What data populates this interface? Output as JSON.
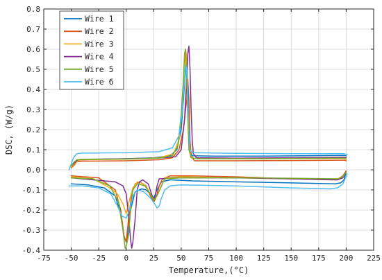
{
  "chart_data": {
    "type": "line",
    "xlabel": "Temperature,(°C)",
    "ylabel": "DSC, (W/g)",
    "xlim": [
      -75,
      225
    ],
    "ylim": [
      -0.4,
      0.8
    ],
    "xticks": [
      -75,
      -50,
      -25,
      0,
      25,
      50,
      75,
      100,
      125,
      150,
      175,
      200,
      225
    ],
    "yticks": [
      -0.4,
      -0.3,
      -0.2,
      -0.1,
      0.0,
      0.1,
      0.2,
      0.3,
      0.4,
      0.5,
      0.6,
      0.7,
      0.8
    ],
    "xtick_labels": [
      "-75",
      "-50",
      "-25",
      "0",
      "25",
      "50",
      "75",
      "100",
      "125",
      "150",
      "175",
      "200",
      "225"
    ],
    "ytick_labels": [
      "-0.4",
      "-0.3",
      "-0.2",
      "-0.1",
      "0.0",
      "0.1",
      "0.2",
      "0.3",
      "0.4",
      "0.5",
      "0.6",
      "0.7",
      "0.8"
    ],
    "grid": true,
    "legend_position": "top-left",
    "series": [
      {
        "name": "Wire 1",
        "color": "#0072BD",
        "heating": [
          [
            -50,
            0.02
          ],
          [
            -48,
            0.03
          ],
          [
            -45,
            0.045
          ],
          [
            -40,
            0.05
          ],
          [
            -25,
            0.052
          ],
          [
            0,
            0.055
          ],
          [
            25,
            0.06
          ],
          [
            40,
            0.07
          ],
          [
            46,
            0.1
          ],
          [
            50,
            0.2
          ],
          [
            52,
            0.35
          ],
          [
            54,
            0.5
          ],
          [
            55,
            0.55
          ],
          [
            56,
            0.4
          ],
          [
            57,
            0.2
          ],
          [
            58,
            0.09
          ],
          [
            60,
            0.07
          ],
          [
            80,
            0.068
          ],
          [
            120,
            0.068
          ],
          [
            160,
            0.07
          ],
          [
            198,
            0.072
          ],
          [
            200,
            0.07
          ]
        ],
        "cooling": [
          [
            200,
            -0.01
          ],
          [
            198,
            -0.05
          ],
          [
            195,
            -0.065
          ],
          [
            190,
            -0.07
          ],
          [
            150,
            -0.065
          ],
          [
            100,
            -0.06
          ],
          [
            60,
            -0.055
          ],
          [
            40,
            -0.05
          ],
          [
            32,
            -0.06
          ],
          [
            28,
            -0.1
          ],
          [
            25,
            -0.14
          ],
          [
            22,
            -0.12
          ],
          [
            18,
            -0.1
          ],
          [
            14,
            -0.095
          ],
          [
            8,
            -0.11
          ],
          [
            4,
            -0.2
          ],
          [
            2,
            -0.3
          ],
          [
            0,
            -0.36
          ],
          [
            -2,
            -0.33
          ],
          [
            -5,
            -0.22
          ],
          [
            -10,
            -0.13
          ],
          [
            -20,
            -0.09
          ],
          [
            -35,
            -0.075
          ],
          [
            -50,
            -0.07
          ]
        ]
      },
      {
        "name": "Wire 2",
        "color": "#D95319",
        "heating": [
          [
            -50,
            0.01
          ],
          [
            -47,
            0.025
          ],
          [
            -45,
            0.04
          ],
          [
            -40,
            0.043
          ],
          [
            0,
            0.045
          ],
          [
            30,
            0.05
          ],
          [
            42,
            0.06
          ],
          [
            48,
            0.1
          ],
          [
            52,
            0.2
          ],
          [
            55,
            0.35
          ],
          [
            56,
            0.45
          ],
          [
            57,
            0.35
          ],
          [
            58,
            0.15
          ],
          [
            59,
            0.07
          ],
          [
            62,
            0.045
          ],
          [
            100,
            0.045
          ],
          [
            150,
            0.046
          ],
          [
            198,
            0.048
          ],
          [
            200,
            0.045
          ]
        ],
        "cooling": [
          [
            200,
            -0.005
          ],
          [
            197,
            -0.03
          ],
          [
            193,
            -0.045
          ],
          [
            188,
            -0.05
          ],
          [
            150,
            -0.045
          ],
          [
            100,
            -0.035
          ],
          [
            60,
            -0.03
          ],
          [
            40,
            -0.03
          ],
          [
            33,
            -0.045
          ],
          [
            30,
            -0.08
          ],
          [
            27,
            -0.14
          ],
          [
            25,
            -0.16
          ],
          [
            22,
            -0.13
          ],
          [
            18,
            -0.08
          ],
          [
            12,
            -0.06
          ],
          [
            8,
            -0.07
          ],
          [
            5,
            -0.12
          ],
          [
            2,
            -0.25
          ],
          [
            0,
            -0.36
          ],
          [
            -2,
            -0.33
          ],
          [
            -5,
            -0.2
          ],
          [
            -10,
            -0.1
          ],
          [
            -25,
            -0.04
          ],
          [
            -50,
            -0.03
          ]
        ]
      },
      {
        "name": "Wire 3",
        "color": "#EDB120",
        "heating": [
          [
            -50,
            0.015
          ],
          [
            -47,
            0.03
          ],
          [
            -44,
            0.045
          ],
          [
            -40,
            0.05
          ],
          [
            0,
            0.053
          ],
          [
            30,
            0.06
          ],
          [
            43,
            0.08
          ],
          [
            48,
            0.15
          ],
          [
            51,
            0.3
          ],
          [
            53,
            0.5
          ],
          [
            54,
            0.6
          ],
          [
            55,
            0.55
          ],
          [
            56,
            0.3
          ],
          [
            57,
            0.12
          ],
          [
            59,
            0.06
          ],
          [
            65,
            0.055
          ],
          [
            120,
            0.055
          ],
          [
            198,
            0.057
          ],
          [
            200,
            0.05
          ]
        ],
        "cooling": [
          [
            200,
            -0.01
          ],
          [
            197,
            -0.035
          ],
          [
            192,
            -0.05
          ],
          [
            150,
            -0.045
          ],
          [
            100,
            -0.04
          ],
          [
            50,
            -0.035
          ],
          [
            35,
            -0.04
          ],
          [
            32,
            -0.08
          ],
          [
            28,
            -0.13
          ],
          [
            25,
            -0.15
          ],
          [
            22,
            -0.12
          ],
          [
            16,
            -0.07
          ],
          [
            10,
            -0.06
          ],
          [
            6,
            -0.09
          ],
          [
            3,
            -0.15
          ],
          [
            0,
            -0.22
          ],
          [
            -3,
            -0.17
          ],
          [
            -8,
            -0.12
          ],
          [
            -15,
            -0.09
          ],
          [
            -30,
            -0.045
          ],
          [
            -50,
            -0.035
          ]
        ]
      },
      {
        "name": "Wire 4",
        "color": "#7E2F8E",
        "heating": [
          [
            -50,
            0.02
          ],
          [
            -47,
            0.035
          ],
          [
            -44,
            0.05
          ],
          [
            -40,
            0.052
          ],
          [
            0,
            0.055
          ],
          [
            30,
            0.058
          ],
          [
            45,
            0.065
          ],
          [
            50,
            0.1
          ],
          [
            53,
            0.25
          ],
          [
            55,
            0.45
          ],
          [
            56,
            0.58
          ],
          [
            57,
            0.615
          ],
          [
            58,
            0.5
          ],
          [
            59,
            0.3
          ],
          [
            60,
            0.15
          ],
          [
            61,
            0.08
          ],
          [
            64,
            0.06
          ],
          [
            100,
            0.058
          ],
          [
            150,
            0.06
          ],
          [
            198,
            0.063
          ],
          [
            200,
            0.06
          ]
        ],
        "cooling": [
          [
            200,
            -0.01
          ],
          [
            197,
            -0.04
          ],
          [
            192,
            -0.05
          ],
          [
            150,
            -0.045
          ],
          [
            100,
            -0.04
          ],
          [
            50,
            -0.04
          ],
          [
            30,
            -0.045
          ],
          [
            28,
            -0.08
          ],
          [
            26,
            -0.14
          ],
          [
            25,
            -0.15
          ],
          [
            23,
            -0.12
          ],
          [
            20,
            -0.07
          ],
          [
            15,
            -0.05
          ],
          [
            12,
            -0.06
          ],
          [
            10,
            -0.1
          ],
          [
            8,
            -0.25
          ],
          [
            6,
            -0.36
          ],
          [
            5,
            -0.39
          ],
          [
            4,
            -0.35
          ],
          [
            2,
            -0.22
          ],
          [
            0,
            -0.12
          ],
          [
            -3,
            -0.08
          ],
          [
            -10,
            -0.06
          ],
          [
            -30,
            -0.05
          ],
          [
            -50,
            -0.04
          ]
        ]
      },
      {
        "name": "Wire 5",
        "color": "#77AC30",
        "heating": [
          [
            -50,
            0.02
          ],
          [
            -48,
            0.035
          ],
          [
            -45,
            0.05
          ],
          [
            -40,
            0.052
          ],
          [
            0,
            0.054
          ],
          [
            30,
            0.058
          ],
          [
            42,
            0.07
          ],
          [
            47,
            0.12
          ],
          [
            50,
            0.28
          ],
          [
            52,
            0.45
          ],
          [
            53,
            0.58
          ],
          [
            54,
            0.6
          ],
          [
            55,
            0.45
          ],
          [
            56,
            0.25
          ],
          [
            57,
            0.1
          ],
          [
            59,
            0.06
          ],
          [
            65,
            0.055
          ],
          [
            120,
            0.055
          ],
          [
            198,
            0.058
          ],
          [
            200,
            0.055
          ]
        ],
        "cooling": [
          [
            200,
            -0.01
          ],
          [
            197,
            -0.035
          ],
          [
            192,
            -0.045
          ],
          [
            150,
            -0.042
          ],
          [
            100,
            -0.04
          ],
          [
            50,
            -0.04
          ],
          [
            35,
            -0.045
          ],
          [
            32,
            -0.08
          ],
          [
            28,
            -0.13
          ],
          [
            25,
            -0.15
          ],
          [
            22,
            -0.12
          ],
          [
            17,
            -0.08
          ],
          [
            10,
            -0.07
          ],
          [
            6,
            -0.1
          ],
          [
            4,
            -0.2
          ],
          [
            2,
            -0.33
          ],
          [
            0,
            -0.38
          ],
          [
            -1,
            -0.39
          ],
          [
            -3,
            -0.3
          ],
          [
            -7,
            -0.16
          ],
          [
            -15,
            -0.08
          ],
          [
            -30,
            -0.045
          ],
          [
            -50,
            -0.04
          ]
        ]
      },
      {
        "name": "Wire 6",
        "color": "#4DBEEE",
        "heating": [
          [
            -52,
            0.0
          ],
          [
            -50,
            0.03
          ],
          [
            -48,
            0.06
          ],
          [
            -45,
            0.08
          ],
          [
            -40,
            0.083
          ],
          [
            0,
            0.085
          ],
          [
            30,
            0.09
          ],
          [
            42,
            0.11
          ],
          [
            48,
            0.17
          ],
          [
            51,
            0.3
          ],
          [
            53,
            0.45
          ],
          [
            54,
            0.52
          ],
          [
            55,
            0.5
          ],
          [
            56,
            0.35
          ],
          [
            57,
            0.18
          ],
          [
            58,
            0.1
          ],
          [
            60,
            0.085
          ],
          [
            100,
            0.082
          ],
          [
            150,
            0.08
          ],
          [
            198,
            0.08
          ],
          [
            201,
            0.075
          ]
        ],
        "cooling": [
          [
            201,
            -0.02
          ],
          [
            197,
            -0.07
          ],
          [
            192,
            -0.09
          ],
          [
            185,
            -0.095
          ],
          [
            150,
            -0.09
          ],
          [
            100,
            -0.08
          ],
          [
            50,
            -0.075
          ],
          [
            40,
            -0.08
          ],
          [
            35,
            -0.1
          ],
          [
            32,
            -0.14
          ],
          [
            30,
            -0.18
          ],
          [
            28,
            -0.19
          ],
          [
            26,
            -0.17
          ],
          [
            22,
            -0.14
          ],
          [
            16,
            -0.11
          ],
          [
            10,
            -0.1
          ],
          [
            6,
            -0.13
          ],
          [
            3,
            -0.2
          ],
          [
            0,
            -0.24
          ],
          [
            -4,
            -0.23
          ],
          [
            -8,
            -0.18
          ],
          [
            -14,
            -0.12
          ],
          [
            -25,
            -0.09
          ],
          [
            -40,
            -0.08
          ],
          [
            -52,
            -0.08
          ]
        ]
      }
    ]
  }
}
